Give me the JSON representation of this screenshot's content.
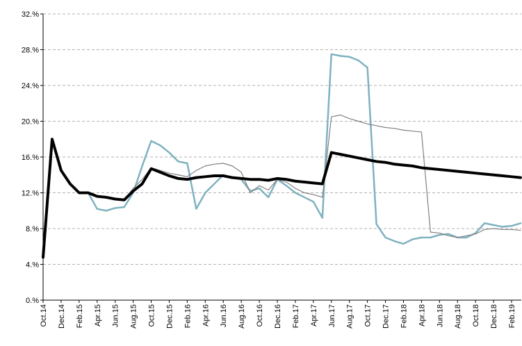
{
  "chart_data": {
    "type": "line",
    "categories": [
      "Oct.14",
      null,
      "Dec.14",
      null,
      "Feb.15",
      null,
      "Apr.15",
      null,
      "Jun.15",
      null,
      "Aug.15",
      null,
      "Oct.15",
      null,
      "Dec.15",
      null,
      "Feb.16",
      null,
      "Apr.16",
      null,
      "Jun.16",
      null,
      "Aug.16",
      null,
      "Oct.16",
      null,
      "Dec.16",
      null,
      "Feb.17",
      null,
      "Apr.17",
      null,
      "Jun.17",
      null,
      "Aug.17",
      null,
      "Oct.17",
      null,
      "Dec.17",
      null,
      "Feb.18",
      null,
      "Apr.18",
      null,
      "Jun.18",
      null,
      "Aug.18",
      null,
      "Oct.18",
      null,
      "Dec.18",
      null,
      "Feb.19",
      null
    ],
    "series": [
      {
        "color": "#000000",
        "values": [
          4.8,
          18.0,
          14.5,
          13.0,
          12.0,
          12.0,
          11.6,
          11.5,
          11.3,
          11.2,
          12.2,
          13.0,
          14.7,
          14.3,
          13.9,
          13.6,
          13.5,
          13.7,
          13.8,
          13.9,
          13.9,
          13.7,
          13.6,
          13.5,
          13.5,
          13.4,
          13.6,
          13.5,
          13.3,
          13.2,
          13.1,
          13.0,
          16.5,
          16.3,
          16.1,
          15.9,
          15.7,
          15.5,
          15.4,
          15.2,
          15.1,
          15.0,
          14.8,
          14.7,
          14.6,
          14.5,
          14.4,
          14.3,
          14.2,
          14.1,
          14.0,
          13.9,
          13.8,
          13.7
        ]
      },
      {
        "color": "#808080",
        "values": [
          4.8,
          18.0,
          14.5,
          13.0,
          12.0,
          12.0,
          11.6,
          11.5,
          11.3,
          11.2,
          12.5,
          13.5,
          14.8,
          14.5,
          14.2,
          14.0,
          13.8,
          14.5,
          15.0,
          15.2,
          15.3,
          15.0,
          14.3,
          12.0,
          12.8,
          12.3,
          13.5,
          13.2,
          12.5,
          12.0,
          11.8,
          11.5,
          20.5,
          20.7,
          20.3,
          20.0,
          19.7,
          19.5,
          19.3,
          19.2,
          19.0,
          18.9,
          18.8,
          7.6,
          7.5,
          7.2,
          7.0,
          7.2,
          7.4,
          7.9,
          8.0,
          7.9,
          7.9,
          7.8
        ]
      },
      {
        "color": "#7fb1c0",
        "values": [
          4.8,
          18.0,
          14.5,
          13.0,
          12.0,
          12.0,
          10.2,
          10.0,
          10.3,
          10.4,
          12.0,
          15.0,
          17.8,
          17.3,
          16.5,
          15.5,
          15.3,
          10.2,
          12.0,
          13.0,
          14.0,
          13.7,
          13.5,
          12.2,
          12.5,
          11.5,
          13.5,
          12.8,
          12.0,
          11.5,
          11.0,
          9.2,
          27.5,
          27.3,
          27.2,
          26.8,
          26.0,
          8.5,
          7.0,
          6.6,
          6.3,
          6.8,
          7.0,
          7.0,
          7.3,
          7.4,
          7.0,
          7.0,
          7.5,
          8.6,
          8.4,
          8.2,
          8.3,
          8.6
        ]
      }
    ],
    "ylim": [
      0,
      32
    ],
    "yticks": [
      {
        "value": 0,
        "label": "0.%"
      },
      {
        "value": 4,
        "label": "4.%"
      },
      {
        "value": 8,
        "label": "8.%"
      },
      {
        "value": 12,
        "label": "12.%"
      },
      {
        "value": 16,
        "label": "16.%"
      },
      {
        "value": 20,
        "label": "20.%"
      },
      {
        "value": 24,
        "label": "24.%"
      },
      {
        "value": 28,
        "label": "28.%"
      },
      {
        "value": 32,
        "label": "32.%"
      }
    ],
    "grid": true
  }
}
